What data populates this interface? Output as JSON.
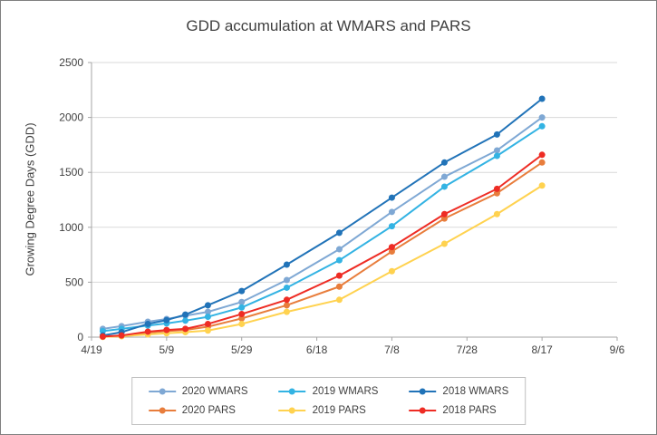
{
  "window": {
    "background": "#ffffff",
    "border_color": "#7f7f7f"
  },
  "chart_data": {
    "type": "line",
    "title": "GDD accumulation at WMARS and PARS",
    "xlabel": "",
    "ylabel": "Growing Degree Days (GDD)",
    "ylim": [
      0,
      2500
    ],
    "grid": true,
    "legend_position": "bottom",
    "y_ticks": [
      0,
      500,
      1000,
      1500,
      2000,
      2500
    ],
    "x_ticks": [
      {
        "label": "4/19",
        "day": 0
      },
      {
        "label": "5/9",
        "day": 20
      },
      {
        "label": "5/29",
        "day": 40
      },
      {
        "label": "6/18",
        "day": 60
      },
      {
        "label": "7/8",
        "day": 80
      },
      {
        "label": "7/28",
        "day": 100
      },
      {
        "label": "8/17",
        "day": 120
      },
      {
        "label": "9/6",
        "day": 140
      }
    ],
    "x_dates": [
      "4/22",
      "4/27",
      "5/4",
      "5/9",
      "5/14",
      "5/20",
      "5/29",
      "6/10",
      "6/24",
      "7/8",
      "7/22",
      "8/5",
      "8/17"
    ],
    "x_days": [
      3,
      8,
      15,
      20,
      25,
      31,
      40,
      52,
      66,
      80,
      94,
      108,
      120
    ],
    "series": [
      {
        "name": "2020 WMARS",
        "color": "#7fa8d4",
        "values": [
          75,
          100,
          140,
          165,
          195,
          230,
          320,
          520,
          800,
          1140,
          1460,
          1700,
          2000
        ]
      },
      {
        "name": "2019 WMARS",
        "color": "#33b3e3",
        "values": [
          55,
          75,
          105,
          125,
          150,
          185,
          270,
          450,
          700,
          1010,
          1370,
          1650,
          1920
        ]
      },
      {
        "name": "2018 WMARS",
        "color": "#2173b8",
        "values": [
          15,
          45,
          120,
          155,
          205,
          290,
          420,
          660,
          950,
          1270,
          1590,
          1845,
          2170
        ]
      },
      {
        "name": "2020 PARS",
        "color": "#e87d3c",
        "values": [
          3,
          10,
          40,
          55,
          65,
          95,
          170,
          290,
          460,
          780,
          1080,
          1310,
          1590
        ]
      },
      {
        "name": "2019 PARS",
        "color": "#ffd24f",
        "values": [
          2,
          8,
          25,
          35,
          45,
          60,
          120,
          230,
          340,
          600,
          850,
          1120,
          1380
        ]
      },
      {
        "name": "2018 PARS",
        "color": "#ee2c24",
        "values": [
          5,
          15,
          50,
          65,
          75,
          120,
          210,
          340,
          560,
          820,
          1120,
          1350,
          1660
        ]
      }
    ],
    "colors": {
      "gridline": "#d9d9d9",
      "axis": "#a6a6a6",
      "tick_label": "#404040"
    }
  }
}
